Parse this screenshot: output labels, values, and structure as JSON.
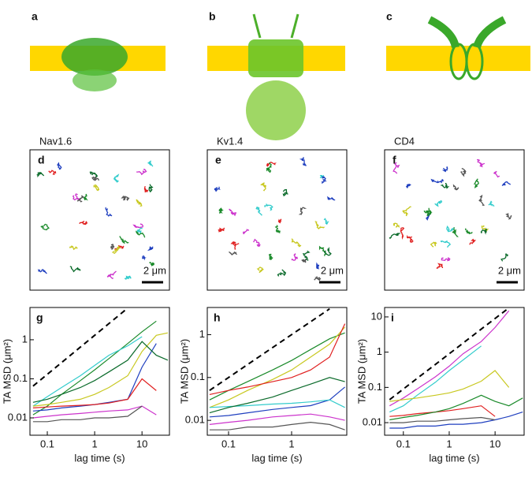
{
  "structures": [
    {
      "label": "a"
    },
    {
      "label": "b"
    },
    {
      "label": "c"
    }
  ],
  "trajectories": [
    {
      "label": "d",
      "protein": "Nav1.6",
      "scale": "2 μm"
    },
    {
      "label": "e",
      "protein": "Kv1.4",
      "scale": "2 μm"
    },
    {
      "label": "f",
      "protein": "CD4",
      "scale": "2 μm"
    }
  ],
  "chart_data": [
    {
      "type": "line",
      "panel": "g",
      "xlabel": "lag time (s)",
      "ylabel": "TA MSD (μm²)",
      "log_x": true,
      "log_y": true,
      "xlim": [
        0.043,
        38
      ],
      "ylim": [
        0.0036,
        6.7
      ],
      "xticks": [
        0.1,
        1,
        10
      ],
      "yticks": [
        0.01,
        0.1,
        1
      ],
      "x": [
        0.05,
        0.1,
        0.2,
        0.5,
        1,
        2,
        5,
        10,
        20,
        35
      ],
      "series": [
        {
          "color": "#000000",
          "dash": true,
          "values": [
            0.065,
            0.13,
            0.26,
            0.65,
            1.3,
            2.6,
            6.5,
            null,
            null,
            null
          ]
        },
        {
          "color": "#1a8a2a",
          "values": [
            0.012,
            0.02,
            0.04,
            0.09,
            0.17,
            0.33,
            0.8,
            1.6,
            3,
            null
          ]
        },
        {
          "color": "#33cccc",
          "values": [
            0.02,
            0.035,
            0.06,
            0.12,
            0.22,
            0.4,
            0.7,
            1.2,
            null,
            null
          ]
        },
        {
          "color": "#1f3fbf",
          "values": [
            0.015,
            0.016,
            0.018,
            0.02,
            0.022,
            0.025,
            0.03,
            0.2,
            0.8,
            null
          ]
        },
        {
          "color": "#e02020",
          "values": [
            0.018,
            0.019,
            0.02,
            0.021,
            0.022,
            0.024,
            0.03,
            0.1,
            0.05,
            null
          ]
        },
        {
          "color": "#cc33cc",
          "values": [
            0.01,
            0.011,
            0.012,
            0.013,
            0.014,
            0.015,
            0.016,
            0.02,
            0.012,
            null
          ]
        },
        {
          "color": "#c8c820",
          "values": [
            0.02,
            0.022,
            0.025,
            0.03,
            0.04,
            0.06,
            0.12,
            0.5,
            1.3,
            1.5
          ]
        },
        {
          "color": "#555555",
          "values": [
            0.008,
            0.008,
            0.009,
            0.009,
            0.01,
            0.01,
            0.011,
            0.02,
            null,
            null
          ]
        },
        {
          "color": "#0a6a2a",
          "values": [
            0.025,
            0.03,
            0.04,
            0.06,
            0.09,
            0.15,
            0.3,
            0.9,
            0.4,
            0.3
          ]
        }
      ]
    },
    {
      "type": "line",
      "panel": "h",
      "xlabel": "lag time (s)",
      "ylabel": "TA MSD (μm²)",
      "log_x": true,
      "log_y": true,
      "xlim": [
        0.046,
        7.5
      ],
      "ylim": [
        0.0045,
        4.3
      ],
      "xticks": [
        0.1,
        1
      ],
      "yticks": [
        0.01,
        0.1,
        1
      ],
      "x": [
        0.05,
        0.1,
        0.2,
        0.5,
        1,
        2,
        4,
        7
      ],
      "series": [
        {
          "color": "#000000",
          "dash": true,
          "values": [
            0.05,
            0.1,
            0.2,
            0.5,
            1,
            2,
            4,
            null
          ]
        },
        {
          "color": "#1a8a2a",
          "values": [
            0.03,
            0.05,
            0.08,
            0.15,
            0.25,
            0.45,
            0.8,
            1.1
          ]
        },
        {
          "color": "#c8c820",
          "values": [
            0.02,
            0.03,
            0.05,
            0.09,
            0.15,
            0.3,
            0.6,
            1.5
          ]
        },
        {
          "color": "#e02020",
          "values": [
            0.04,
            0.05,
            0.06,
            0.08,
            0.1,
            0.15,
            0.3,
            1.8
          ]
        },
        {
          "color": "#1f3fbf",
          "values": [
            0.012,
            0.013,
            0.015,
            0.018,
            0.02,
            0.022,
            0.03,
            0.06
          ]
        },
        {
          "color": "#33cccc",
          "values": [
            0.02,
            0.021,
            0.022,
            0.024,
            0.025,
            0.027,
            0.03,
            0.02
          ]
        },
        {
          "color": "#cc33cc",
          "values": [
            0.008,
            0.009,
            0.01,
            0.012,
            0.013,
            0.014,
            0.012,
            0.01
          ]
        },
        {
          "color": "#555555",
          "values": [
            0.006,
            0.006,
            0.007,
            0.007,
            0.008,
            0.009,
            0.008,
            0.006
          ]
        },
        {
          "color": "#0a6a2a",
          "values": [
            0.015,
            0.02,
            0.025,
            0.035,
            0.05,
            0.07,
            0.1,
            0.08
          ]
        }
      ]
    },
    {
      "type": "line",
      "panel": "i",
      "xlabel": "lag time (s)",
      "ylabel": "TA MSD (μm²)",
      "log_x": true,
      "log_y": true,
      "xlim": [
        0.039,
        43
      ],
      "ylim": [
        0.0044,
        18.5
      ],
      "xticks": [
        0.1,
        1,
        10
      ],
      "yticks": [
        0.01,
        0.1,
        1,
        10
      ],
      "x": [
        0.05,
        0.1,
        0.2,
        0.5,
        1,
        2,
        5,
        10,
        20,
        40
      ],
      "series": [
        {
          "color": "#000000",
          "dash": true,
          "values": [
            0.045,
            0.09,
            0.18,
            0.45,
            0.9,
            1.8,
            4.5,
            9,
            18,
            null
          ]
        },
        {
          "color": "#cc33cc",
          "values": [
            0.03,
            0.05,
            0.09,
            0.2,
            0.4,
            0.9,
            2,
            5,
            15,
            null
          ]
        },
        {
          "color": "#33cccc",
          "values": [
            0.02,
            0.03,
            0.06,
            0.14,
            0.3,
            0.6,
            1.5,
            null,
            null,
            null
          ]
        },
        {
          "color": "#e02020",
          "values": [
            0.015,
            0.016,
            0.018,
            0.02,
            0.022,
            0.025,
            0.03,
            0.015,
            null,
            null
          ]
        },
        {
          "color": "#1a8a2a",
          "values": [
            0.012,
            0.014,
            0.016,
            0.02,
            0.025,
            0.035,
            0.06,
            0.04,
            0.03,
            0.05
          ]
        },
        {
          "color": "#1f3fbf",
          "values": [
            0.007,
            0.007,
            0.008,
            0.008,
            0.009,
            0.009,
            0.01,
            0.012,
            0.015,
            0.02
          ]
        },
        {
          "color": "#c8c820",
          "values": [
            0.04,
            0.045,
            0.05,
            0.06,
            0.07,
            0.09,
            0.15,
            0.3,
            0.1,
            null
          ]
        },
        {
          "color": "#555555",
          "values": [
            0.01,
            0.01,
            0.011,
            0.011,
            0.012,
            0.013,
            0.014,
            0.012,
            null,
            null
          ]
        }
      ]
    }
  ]
}
